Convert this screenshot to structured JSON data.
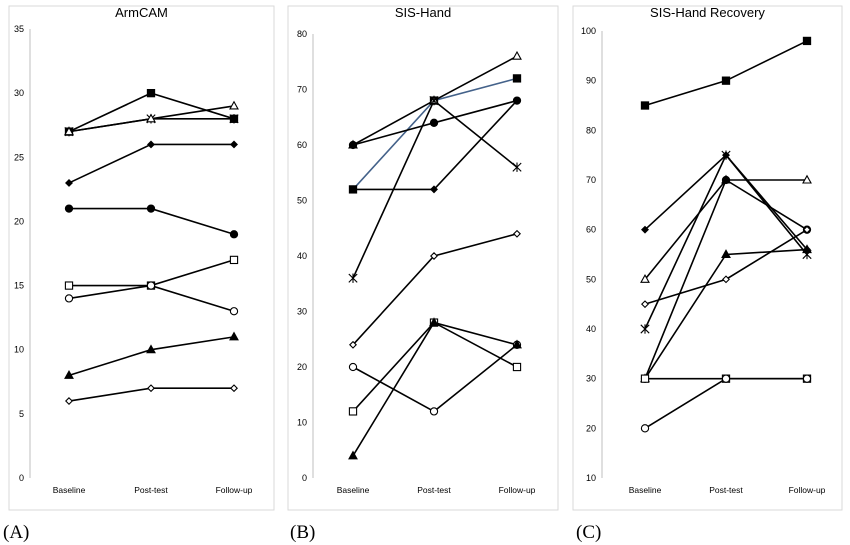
{
  "chart_data": [
    {
      "type": "line",
      "title": "ArmCAM",
      "panel_label": "(A)",
      "categories": [
        "Baseline",
        "Post-test",
        "Follow-up"
      ],
      "ylim": [
        0,
        35
      ],
      "ytick_step": 5,
      "grid": false,
      "series": [
        {
          "marker": "square-filled",
          "color": "#000000",
          "values": [
            27,
            30,
            28
          ]
        },
        {
          "marker": "x-cross",
          "color": "#000000",
          "values": [
            27,
            28,
            28
          ]
        },
        {
          "marker": "triangle-open",
          "color": "#000000",
          "values": [
            27,
            28,
            29
          ]
        },
        {
          "marker": "diamond-filled",
          "color": "#000000",
          "values": [
            23,
            26,
            26
          ]
        },
        {
          "marker": "circle-filled",
          "color": "#000000",
          "values": [
            21,
            21,
            19
          ]
        },
        {
          "marker": "square-open",
          "color": "#000000",
          "values": [
            15,
            15,
            17
          ]
        },
        {
          "marker": "circle-open",
          "color": "#000000",
          "values": [
            14,
            15,
            13
          ]
        },
        {
          "marker": "triangle-filled",
          "color": "#000000",
          "values": [
            8,
            10,
            11
          ]
        },
        {
          "marker": "diamond-open",
          "color": "#000000",
          "values": [
            6,
            7,
            7
          ]
        }
      ]
    },
    {
      "type": "line",
      "title": "SIS-Hand",
      "panel_label": "(B)",
      "categories": [
        "Baseline",
        "Post-test",
        "Follow-up"
      ],
      "ylim": [
        0,
        80
      ],
      "ytick_step": 10,
      "grid": false,
      "series": [
        {
          "marker": "square-filled",
          "color": "#44628a",
          "values": [
            52,
            68,
            72
          ]
        },
        {
          "marker": "triangle-open",
          "color": "#000000",
          "values": [
            60,
            68,
            76
          ]
        },
        {
          "marker": "circle-filled",
          "color": "#000000",
          "values": [
            60,
            64,
            68
          ]
        },
        {
          "marker": "x-cross",
          "color": "#000000",
          "values": [
            36,
            68,
            56
          ]
        },
        {
          "marker": "diamond-filled",
          "color": "#000000",
          "values": [
            52,
            52,
            68
          ]
        },
        {
          "marker": "diamond-open",
          "color": "#000000",
          "values": [
            24,
            40,
            44
          ]
        },
        {
          "marker": "square-open",
          "color": "#000000",
          "values": [
            12,
            28,
            20
          ]
        },
        {
          "marker": "circle-open",
          "color": "#000000",
          "values": [
            20,
            12,
            24
          ]
        },
        {
          "marker": "triangle-filled",
          "color": "#000000",
          "values": [
            4,
            28,
            24
          ]
        }
      ]
    },
    {
      "type": "line",
      "title": "SIS-Hand Recovery",
      "panel_label": "(C)",
      "categories": [
        "Baseline",
        "Post-test",
        "Follow-up"
      ],
      "ylim": [
        10,
        100
      ],
      "ytick_step": 10,
      "grid": false,
      "series": [
        {
          "marker": "square-filled",
          "color": "#000000",
          "values": [
            85,
            90,
            98
          ]
        },
        {
          "marker": "x-cross",
          "color": "#000000",
          "values": [
            40,
            75,
            55
          ]
        },
        {
          "marker": "diamond-filled",
          "color": "#000000",
          "values": [
            60,
            75,
            56
          ]
        },
        {
          "marker": "triangle-open",
          "color": "#000000",
          "values": [
            50,
            70,
            70
          ]
        },
        {
          "marker": "triangle-filled",
          "color": "#000000",
          "values": [
            30,
            55,
            56
          ]
        },
        {
          "marker": "circle-filled",
          "color": "#000000",
          "values": [
            30,
            70,
            60
          ]
        },
        {
          "marker": "diamond-open",
          "color": "#000000",
          "values": [
            45,
            50,
            60
          ]
        },
        {
          "marker": "square-open",
          "color": "#000000",
          "values": [
            30,
            30,
            30
          ]
        },
        {
          "marker": "circle-open",
          "color": "#000000",
          "values": [
            20,
            30,
            30
          ]
        }
      ]
    }
  ]
}
